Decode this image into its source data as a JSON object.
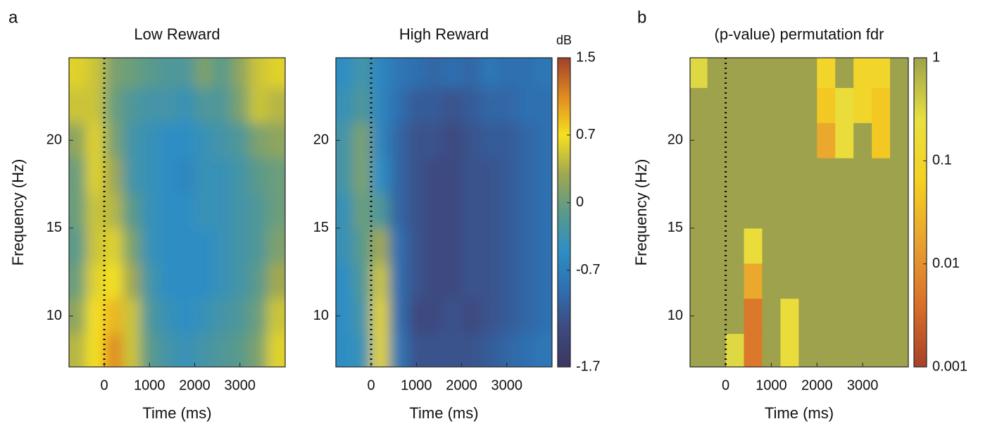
{
  "chart_data": [
    {
      "type": "heatmap",
      "panel_label": "a",
      "title": "Low Reward",
      "xlabel": "Time (ms)",
      "ylabel": "Frequency (Hz)",
      "xlim": [
        -780,
        4000
      ],
      "ylim": [
        7.1,
        24.7
      ],
      "xticks": [
        0,
        1000,
        2000,
        3000
      ],
      "yticks": [
        10,
        15,
        20
      ],
      "vlines": [
        0
      ],
      "smooth": true,
      "clim": [
        -1.7,
        1.5
      ],
      "colormap": [
        "#3b3660",
        "#3d4a80",
        "#2f6fb0",
        "#2e8ec4",
        "#5a9a8a",
        "#a0a850",
        "#f5e020",
        "#e08a20",
        "#a0402a"
      ],
      "x": [
        -600,
        -200,
        200,
        600,
        1000,
        1400,
        1800,
        2200,
        2600,
        3000,
        3400,
        3800
      ],
      "y": [
        8,
        10,
        12,
        14,
        16,
        18,
        20,
        22,
        24
      ],
      "z": [
        [
          0.4,
          0.7,
          1.1,
          0.5,
          -0.1,
          -0.3,
          -0.4,
          -0.3,
          -0.2,
          -0.1,
          0.1,
          0.6
        ],
        [
          0.2,
          0.7,
          0.9,
          0.5,
          -0.2,
          -0.4,
          -0.5,
          -0.4,
          -0.3,
          -0.2,
          0,
          0.5
        ],
        [
          0,
          0.6,
          0.7,
          0.3,
          -0.3,
          -0.5,
          -0.5,
          -0.5,
          -0.4,
          -0.3,
          -0.1,
          0.3
        ],
        [
          -0.1,
          0.5,
          0.6,
          0.1,
          -0.4,
          -0.5,
          -0.5,
          -0.5,
          -0.4,
          -0.3,
          -0.2,
          0.1
        ],
        [
          0,
          0.5,
          0.4,
          -0.1,
          -0.4,
          -0.5,
          -0.5,
          -0.4,
          -0.4,
          -0.3,
          -0.2,
          0
        ],
        [
          0,
          0.6,
          0.3,
          -0.3,
          -0.4,
          -0.5,
          -0.6,
          -0.4,
          -0.4,
          -0.3,
          -0.1,
          0
        ],
        [
          0.2,
          0.6,
          0.1,
          -0.3,
          -0.4,
          -0.5,
          -0.5,
          -0.4,
          -0.3,
          -0.2,
          0.1,
          0.2
        ],
        [
          0.5,
          0.5,
          0,
          -0.2,
          -0.3,
          -0.3,
          -0.4,
          -0.2,
          -0.2,
          0.1,
          0.5,
          0.4
        ],
        [
          0.6,
          0.5,
          0.1,
          0,
          -0.1,
          -0.2,
          -0.2,
          0.1,
          -0.1,
          0.2,
          0.5,
          0.6
        ]
      ]
    },
    {
      "type": "heatmap",
      "title": "High Reward",
      "xlabel": "Time (ms)",
      "xlim": [
        -780,
        4000
      ],
      "ylim": [
        7.1,
        24.7
      ],
      "xticks": [
        0,
        1000,
        2000,
        3000
      ],
      "yticks": [
        10,
        15,
        20
      ],
      "vlines": [
        0
      ],
      "smooth": true,
      "clim": [
        -1.7,
        1.5
      ],
      "colormap": [
        "#3b3660",
        "#3d4a80",
        "#2f6fb0",
        "#2e8ec4",
        "#5a9a8a",
        "#a0a850",
        "#f5e020",
        "#e08a20",
        "#a0402a"
      ],
      "colorbar": {
        "label": "dB",
        "ticks": [
          1.5,
          0.7,
          0,
          -0.7,
          -1.7
        ]
      },
      "x": [
        -600,
        -200,
        200,
        600,
        1000,
        1400,
        1800,
        2200,
        2600,
        3000,
        3400,
        3800
      ],
      "y": [
        8,
        10,
        12,
        14,
        16,
        18,
        20,
        22,
        24
      ],
      "z": [
        [
          -0.5,
          -0.4,
          0.6,
          -0.8,
          -1.2,
          -1.2,
          -1.2,
          -1.2,
          -1.1,
          -1.0,
          -0.9,
          -0.8
        ],
        [
          -0.5,
          -0.3,
          0.6,
          -0.9,
          -1.3,
          -1.3,
          -1.2,
          -1.3,
          -1.2,
          -1.1,
          -1.0,
          -0.9
        ],
        [
          -0.5,
          -0.2,
          0.5,
          -0.9,
          -1.2,
          -1.3,
          -1.3,
          -1.2,
          -1.2,
          -1.1,
          -1.0,
          -0.9
        ],
        [
          -0.4,
          -0.1,
          0.3,
          -0.9,
          -1.2,
          -1.3,
          -1.3,
          -1.2,
          -1.2,
          -1.1,
          -1.0,
          -0.9
        ],
        [
          -0.4,
          0,
          -0.2,
          -1.0,
          -1.2,
          -1.3,
          -1.3,
          -1.2,
          -1.2,
          -1.1,
          -1.0,
          -0.9
        ],
        [
          -0.3,
          0.1,
          -0.5,
          -1.0,
          -1.2,
          -1.3,
          -1.3,
          -1.2,
          -1.2,
          -1.1,
          -1.0,
          -0.9
        ],
        [
          -0.3,
          0.1,
          -0.6,
          -1.0,
          -1.2,
          -1.2,
          -1.3,
          -1.2,
          -1.1,
          -1.1,
          -1.0,
          -0.9
        ],
        [
          -0.4,
          -0.2,
          -0.6,
          -0.9,
          -1.1,
          -1.1,
          -1.2,
          -1.1,
          -1.0,
          -1.0,
          -0.9,
          -0.9
        ],
        [
          -0.5,
          -0.3,
          -0.6,
          -0.8,
          -0.9,
          -1.0,
          -0.9,
          -1.0,
          -0.8,
          -0.9,
          -0.9,
          -0.8
        ]
      ]
    },
    {
      "type": "heatmap",
      "panel_label": "b",
      "title": "(p-value) permutation fdr",
      "xlabel": "Time (ms)",
      "ylabel": "Frequency (Hz)",
      "xlim": [
        -780,
        4000
      ],
      "ylim": [
        7.1,
        24.7
      ],
      "xticks": [
        0,
        1000,
        2000,
        3000
      ],
      "yticks": [
        10,
        15,
        20
      ],
      "vlines": [
        0
      ],
      "smooth": false,
      "clim": [
        0.001,
        1
      ],
      "log": true,
      "colormap": [
        "#a8402a",
        "#d8702a",
        "#e8a030",
        "#f5d020",
        "#e8e040",
        "#9ea24c"
      ],
      "colorbar": {
        "ticks": [
          1,
          0.1,
          0.01,
          0.001
        ]
      },
      "x": [
        -600,
        -200,
        200,
        600,
        1000,
        1400,
        1800,
        2200,
        2600,
        3000,
        3400,
        3800
      ],
      "y": [
        8,
        10,
        12,
        14,
        16,
        18,
        20,
        22,
        24
      ],
      "z": [
        [
          1,
          1,
          0.3,
          0.005,
          1,
          0.2,
          1,
          1,
          1,
          1,
          1,
          1
        ],
        [
          1,
          1,
          1,
          0.005,
          1,
          0.2,
          1,
          1,
          1,
          1,
          1,
          1
        ],
        [
          1,
          1,
          1,
          0.02,
          1,
          1,
          1,
          1,
          1,
          1,
          1,
          1
        ],
        [
          1,
          1,
          1,
          0.2,
          1,
          1,
          1,
          1,
          1,
          1,
          1,
          1
        ],
        [
          1,
          1,
          1,
          1,
          1,
          1,
          1,
          1,
          1,
          1,
          1,
          1
        ],
        [
          1,
          1,
          1,
          1,
          1,
          1,
          1,
          1,
          1,
          1,
          1,
          1
        ],
        [
          1,
          1,
          1,
          1,
          1,
          1,
          1,
          0.02,
          0.2,
          1,
          0.05,
          1
        ],
        [
          1,
          1,
          1,
          1,
          1,
          1,
          1,
          0.05,
          0.2,
          0.1,
          0.05,
          1
        ],
        [
          0.3,
          1,
          1,
          1,
          1,
          1,
          1,
          0.1,
          1,
          0.1,
          0.1,
          1
        ]
      ]
    }
  ]
}
